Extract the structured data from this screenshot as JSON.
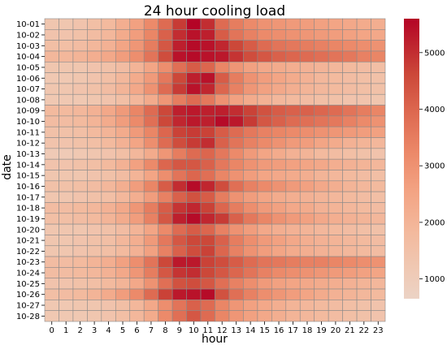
{
  "chart_data": {
    "type": "heatmap",
    "title": "24 hour cooling load",
    "xlabel": "hour",
    "ylabel": "date",
    "x_labels": [
      "0",
      "1",
      "2",
      "3",
      "4",
      "5",
      "6",
      "7",
      "8",
      "9",
      "10",
      "11",
      "12",
      "13",
      "14",
      "15",
      "16",
      "17",
      "18",
      "19",
      "20",
      "21",
      "22",
      "23"
    ],
    "y_labels": [
      "10-01",
      "10-02",
      "10-03",
      "10-04",
      "10-05",
      "10-06",
      "10-07",
      "10-08",
      "10-09",
      "10-10",
      "10-11",
      "10-12",
      "10-13",
      "10-14",
      "10-15",
      "10-16",
      "10-17",
      "10-18",
      "10-19",
      "10-20",
      "10-21",
      "10-22",
      "10-23",
      "10-24",
      "10-25",
      "10-26",
      "10-27",
      "10-28"
    ],
    "colorbar": {
      "min": 650,
      "max": 5600,
      "ticks": [
        1000,
        2000,
        3000,
        4000,
        5000
      ],
      "colormap": "coolwarm-upper",
      "color_low": "#ecd3c5",
      "color_high": "#b40426"
    },
    "values": [
      [
        1300,
        1300,
        1400,
        1600,
        1800,
        2200,
        2600,
        3200,
        3900,
        4800,
        5600,
        5000,
        3900,
        3500,
        3200,
        3000,
        2900,
        2800,
        2700,
        2600,
        2500,
        2400,
        2300,
        2200
      ],
      [
        1400,
        1400,
        1500,
        1700,
        1900,
        2300,
        2700,
        3300,
        4100,
        5000,
        5400,
        5200,
        4200,
        3700,
        3400,
        3200,
        3100,
        3000,
        2900,
        2800,
        2700,
        2600,
        2500,
        2400
      ],
      [
        1600,
        1600,
        1700,
        1900,
        2100,
        2500,
        2900,
        3500,
        4300,
        5200,
        5500,
        5400,
        5100,
        4600,
        4200,
        3900,
        3700,
        3600,
        3500,
        3400,
        3300,
        3200,
        3100,
        3000
      ],
      [
        1900,
        1900,
        2000,
        2200,
        2400,
        2700,
        3100,
        3700,
        4500,
        5400,
        5500,
        5400,
        5300,
        4900,
        4500,
        4300,
        4100,
        4000,
        3900,
        3800,
        3700,
        3600,
        3400,
        3300
      ],
      [
        1300,
        1300,
        1300,
        1400,
        1500,
        1700,
        2000,
        2500,
        3100,
        3800,
        4200,
        4000,
        3300,
        2900,
        2600,
        2400,
        2300,
        2200,
        2100,
        2000,
        1900,
        1800,
        1700,
        1600
      ],
      [
        1200,
        1200,
        1300,
        1400,
        1600,
        1900,
        2300,
        2800,
        3600,
        4600,
        5200,
        5400,
        4200,
        3500,
        3000,
        2700,
        2500,
        2300,
        2100,
        1900,
        1800,
        1700,
        1600,
        1500
      ],
      [
        1300,
        1300,
        1400,
        1500,
        1700,
        2000,
        2400,
        3000,
        3900,
        4800,
        5400,
        5100,
        4000,
        3400,
        2900,
        2600,
        2400,
        2200,
        2000,
        1900,
        1800,
        1700,
        1600,
        1500
      ],
      [
        1200,
        1200,
        1200,
        1300,
        1400,
        1600,
        1900,
        2300,
        2900,
        3500,
        3900,
        3600,
        3000,
        2600,
        2300,
        2100,
        1900,
        1800,
        1700,
        1600,
        1500,
        1400,
        1400,
        1300
      ],
      [
        1800,
        1800,
        1900,
        2100,
        2400,
        2800,
        3300,
        3900,
        4600,
        5200,
        5300,
        5200,
        5200,
        5000,
        4700,
        4400,
        4200,
        4100,
        4100,
        4000,
        3900,
        3700,
        3500,
        3300
      ],
      [
        1700,
        1700,
        1800,
        2000,
        2300,
        2700,
        3200,
        3800,
        4600,
        5100,
        5300,
        5200,
        5500,
        5300,
        4800,
        4300,
        4100,
        3900,
        3800,
        3700,
        3600,
        3400,
        3200,
        3000
      ],
      [
        1500,
        1500,
        1600,
        1800,
        2000,
        2300,
        2800,
        3300,
        4000,
        4700,
        4800,
        4700,
        4200,
        3900,
        3600,
        3400,
        3300,
        3200,
        3100,
        3000,
        2900,
        2800,
        2700,
        2600
      ],
      [
        1400,
        1400,
        1500,
        1600,
        1800,
        2100,
        2500,
        3100,
        3900,
        4500,
        4800,
        5000,
        4100,
        3700,
        3400,
        3200,
        3000,
        2800,
        2700,
        2500,
        2300,
        2100,
        2000,
        1900
      ],
      [
        1100,
        1100,
        1200,
        1300,
        1400,
        1600,
        1900,
        2300,
        2900,
        3500,
        3900,
        4000,
        3600,
        3200,
        2800,
        2500,
        2300,
        2100,
        2000,
        1800,
        1700,
        1600,
        1500,
        1400
      ],
      [
        1400,
        1400,
        1500,
        1600,
        1800,
        2100,
        2600,
        3200,
        4000,
        4300,
        4300,
        4100,
        3600,
        3300,
        3000,
        2800,
        2700,
        2600,
        2500,
        2400,
        2200,
        2100,
        2000,
        1900
      ],
      [
        1300,
        1300,
        1300,
        1400,
        1500,
        1700,
        2000,
        2500,
        3100,
        3700,
        4000,
        3800,
        3300,
        3000,
        2700,
        2500,
        2400,
        2300,
        2200,
        2000,
        1900,
        1800,
        1700,
        1600
      ],
      [
        1500,
        1500,
        1600,
        1700,
        1900,
        2200,
        2700,
        3300,
        4200,
        5000,
        5500,
        5100,
        4500,
        3800,
        3400,
        3200,
        3000,
        2800,
        2600,
        2400,
        2200,
        2000,
        1900,
        1800
      ],
      [
        1300,
        1300,
        1400,
        1500,
        1600,
        1900,
        2200,
        2700,
        3400,
        4100,
        4400,
        4200,
        3500,
        3000,
        2700,
        2500,
        2300,
        2200,
        2100,
        2000,
        1900,
        1800,
        1700,
        1600
      ],
      [
        1700,
        1700,
        1800,
        1900,
        2100,
        2400,
        2900,
        3500,
        4200,
        4900,
        5100,
        4700,
        4000,
        3500,
        3100,
        2800,
        2600,
        2400,
        2300,
        2100,
        2000,
        1900,
        1800,
        1700
      ],
      [
        1600,
        1600,
        1700,
        1800,
        2000,
        2300,
        2700,
        3400,
        4300,
        5200,
        5500,
        5100,
        4800,
        4100,
        3600,
        3300,
        3000,
        2800,
        2600,
        2400,
        2200,
        2100,
        2000,
        1900
      ],
      [
        1300,
        1300,
        1300,
        1400,
        1500,
        1700,
        2000,
        2500,
        3200,
        3900,
        4200,
        4000,
        3400,
        3000,
        2700,
        2400,
        2200,
        2100,
        2000,
        1900,
        1800,
        1700,
        1600,
        1500
      ],
      [
        1300,
        1300,
        1400,
        1500,
        1600,
        1900,
        2200,
        2800,
        3600,
        4300,
        4600,
        4600,
        4100,
        3500,
        3100,
        2800,
        2600,
        2400,
        2200,
        2100,
        2000,
        1900,
        1800,
        1700
      ],
      [
        1300,
        1300,
        1400,
        1500,
        1600,
        1800,
        2100,
        2600,
        3400,
        4100,
        4500,
        4700,
        4000,
        3400,
        3000,
        2700,
        2500,
        2300,
        2200,
        2100,
        2000,
        1900,
        1800,
        1700
      ],
      [
        1700,
        1700,
        1800,
        2000,
        2200,
        2600,
        3100,
        3700,
        4600,
        5300,
        5300,
        4700,
        4500,
        4200,
        3900,
        3700,
        3600,
        3500,
        3400,
        3400,
        3300,
        3200,
        3100,
        3000
      ],
      [
        1700,
        1700,
        1800,
        1900,
        2100,
        2400,
        2900,
        3500,
        4300,
        4900,
        5000,
        4600,
        4300,
        4000,
        3700,
        3400,
        3200,
        3100,
        3000,
        2900,
        2800,
        2700,
        2600,
        2500
      ],
      [
        1400,
        1400,
        1500,
        1600,
        1800,
        2000,
        2400,
        3000,
        3800,
        4400,
        4500,
        4300,
        3800,
        3400,
        3100,
        2800,
        2600,
        2500,
        2400,
        2300,
        2200,
        2100,
        2000,
        1900
      ],
      [
        1600,
        1700,
        1800,
        2000,
        2300,
        2700,
        3200,
        3900,
        4700,
        5300,
        5400,
        5500,
        4400,
        3800,
        3400,
        3100,
        2900,
        2700,
        2500,
        2300,
        2100,
        2000,
        1900,
        1800
      ],
      [
        1200,
        1200,
        1300,
        1300,
        1400,
        1600,
        1900,
        2400,
        3100,
        3700,
        4100,
        3900,
        3300,
        2900,
        2600,
        2400,
        2200,
        2000,
        1900,
        1800,
        1700,
        1600,
        1500,
        1400
      ],
      [
        1200,
        1200,
        1200,
        1300,
        1400,
        1600,
        1900,
        2300,
        3200,
        3800,
        4300,
        3900,
        3300,
        2900,
        2600,
        2400,
        2200,
        2000,
        1900,
        1800,
        1700,
        1600,
        1500,
        1400
      ]
    ]
  }
}
